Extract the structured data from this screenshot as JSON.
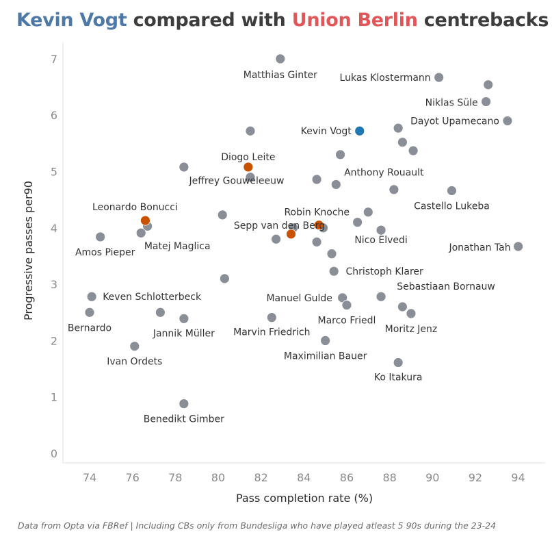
{
  "title": {
    "player": "Kevin Vogt",
    "middle": "compared with",
    "team": "Union Berlin",
    "end": "centrebacks"
  },
  "footer": "Data from Opta via FBRef | Including CBs only from Bundesliga who have played atleast 5 90s during the 23-24",
  "chart_data": {
    "type": "scatter",
    "xlabel": "Pass completion rate (%)",
    "ylabel": "Progressive passes per90",
    "xlim": [
      72.9,
      95
    ],
    "ylim": [
      -0.15,
      7.3
    ],
    "xticks": [
      74,
      76,
      78,
      80,
      82,
      84,
      86,
      88,
      90,
      92,
      94
    ],
    "yticks": [
      0,
      1,
      2,
      3,
      4,
      5,
      6,
      7
    ],
    "colors": {
      "other": "#8a8e97",
      "union": "#c85200",
      "highlight": "#1f77b4"
    },
    "points": [
      {
        "x": 82.9,
        "y": 7.0,
        "label": "Matthias Ginter",
        "group": "other"
      },
      {
        "x": 90.3,
        "y": 6.67,
        "label": "Lukas Klostermann",
        "group": "other"
      },
      {
        "x": 92.6,
        "y": 6.54,
        "label": "",
        "group": "other"
      },
      {
        "x": 92.5,
        "y": 6.24,
        "label": "Niklas Süle",
        "group": "other"
      },
      {
        "x": 93.5,
        "y": 5.9,
        "label": "Dayot Upamecano",
        "group": "other"
      },
      {
        "x": 86.6,
        "y": 5.72,
        "label": "Kevin Vogt",
        "group": "highlight"
      },
      {
        "x": 81.5,
        "y": 5.72,
        "label": "",
        "group": "other"
      },
      {
        "x": 88.4,
        "y": 5.77,
        "label": "",
        "group": "other"
      },
      {
        "x": 88.6,
        "y": 5.52,
        "label": "",
        "group": "other"
      },
      {
        "x": 89.1,
        "y": 5.37,
        "label": "",
        "group": "other"
      },
      {
        "x": 85.7,
        "y": 5.3,
        "label": "",
        "group": "other"
      },
      {
        "x": 81.4,
        "y": 5.08,
        "label": "Diogo Leite",
        "group": "union"
      },
      {
        "x": 78.4,
        "y": 5.08,
        "label": "",
        "group": "other"
      },
      {
        "x": 81.5,
        "y": 4.9,
        "label": "Jeffrey Gouweleeuw",
        "group": "other"
      },
      {
        "x": 84.6,
        "y": 4.86,
        "label": "",
        "group": "other"
      },
      {
        "x": 85.5,
        "y": 4.77,
        "label": "Anthony Rouault",
        "group": "other"
      },
      {
        "x": 88.2,
        "y": 4.68,
        "label": "",
        "group": "other"
      },
      {
        "x": 90.9,
        "y": 4.66,
        "label": "Castello Lukeba",
        "group": "other"
      },
      {
        "x": 87.0,
        "y": 4.28,
        "label": "",
        "group": "other"
      },
      {
        "x": 80.2,
        "y": 4.23,
        "label": "",
        "group": "other"
      },
      {
        "x": 76.6,
        "y": 4.13,
        "label": "Leonardo Bonucci",
        "group": "union"
      },
      {
        "x": 76.7,
        "y": 4.03,
        "label": "",
        "group": "other"
      },
      {
        "x": 76.4,
        "y": 3.91,
        "label": "Matej Maglica",
        "group": "other"
      },
      {
        "x": 84.7,
        "y": 4.05,
        "label": "Robin Knoche",
        "group": "union"
      },
      {
        "x": 84.9,
        "y": 4.0,
        "label": "",
        "group": "other"
      },
      {
        "x": 83.5,
        "y": 4.0,
        "label": "",
        "group": "other"
      },
      {
        "x": 83.4,
        "y": 3.89,
        "label": "Sepp van den Berg",
        "group": "union"
      },
      {
        "x": 82.7,
        "y": 3.8,
        "label": "",
        "group": "other"
      },
      {
        "x": 86.5,
        "y": 4.1,
        "label": "",
        "group": "other"
      },
      {
        "x": 87.6,
        "y": 3.96,
        "label": "Nico Elvedi",
        "group": "other"
      },
      {
        "x": 84.6,
        "y": 3.75,
        "label": "",
        "group": "other"
      },
      {
        "x": 74.5,
        "y": 3.84,
        "label": "Amos Pieper",
        "group": "other"
      },
      {
        "x": 94.0,
        "y": 3.67,
        "label": "Jonathan Tah",
        "group": "other"
      },
      {
        "x": 85.3,
        "y": 3.54,
        "label": "",
        "group": "other"
      },
      {
        "x": 85.4,
        "y": 3.23,
        "label": "Christoph Klarer",
        "group": "other"
      },
      {
        "x": 80.3,
        "y": 3.1,
        "label": "",
        "group": "other"
      },
      {
        "x": 74.1,
        "y": 2.78,
        "label": "Keven Schlotterbeck",
        "group": "other"
      },
      {
        "x": 85.8,
        "y": 2.76,
        "label": "Manuel Gulde",
        "group": "other"
      },
      {
        "x": 87.6,
        "y": 2.78,
        "label": "Sebastiaan Bornauw",
        "group": "other"
      },
      {
        "x": 86.0,
        "y": 2.63,
        "label": "Marco Friedl",
        "group": "other"
      },
      {
        "x": 88.6,
        "y": 2.6,
        "label": "",
        "group": "other"
      },
      {
        "x": 89.0,
        "y": 2.48,
        "label": "Moritz Jenz",
        "group": "other"
      },
      {
        "x": 74.0,
        "y": 2.5,
        "label": "Bernardo",
        "group": "other"
      },
      {
        "x": 77.3,
        "y": 2.5,
        "label": "",
        "group": "other"
      },
      {
        "x": 78.4,
        "y": 2.39,
        "label": "Jannik Müller",
        "group": "other"
      },
      {
        "x": 82.5,
        "y": 2.41,
        "label": "Marvin Friedrich",
        "group": "other"
      },
      {
        "x": 85.0,
        "y": 2.0,
        "label": "Maximilian Bauer",
        "group": "other"
      },
      {
        "x": 76.1,
        "y": 1.9,
        "label": "Ivan Ordets",
        "group": "other"
      },
      {
        "x": 88.4,
        "y": 1.61,
        "label": "Ko Itakura",
        "group": "other"
      },
      {
        "x": 78.4,
        "y": 0.88,
        "label": "Benedikt Gimber",
        "group": "other"
      }
    ]
  }
}
